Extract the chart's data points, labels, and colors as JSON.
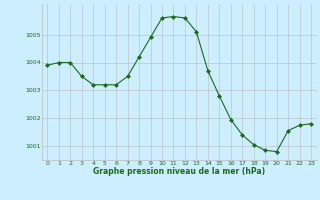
{
  "x": [
    0,
    1,
    2,
    3,
    4,
    5,
    6,
    7,
    8,
    9,
    10,
    11,
    12,
    13,
    14,
    15,
    16,
    17,
    18,
    19,
    20,
    21,
    22,
    23
  ],
  "y": [
    1003.9,
    1004.0,
    1004.0,
    1003.5,
    1003.2,
    1003.2,
    1003.2,
    1003.5,
    1004.2,
    1004.9,
    1005.6,
    1005.65,
    1005.6,
    1005.1,
    1003.7,
    1002.8,
    1001.95,
    1001.4,
    1001.05,
    1000.85,
    1000.8,
    1001.55,
    1001.75,
    1001.8
  ],
  "line_color": "#1a6b1a",
  "marker": "D",
  "marker_size": 2.0,
  "bg_color": "#cceeff",
  "grid_color": "#bbbbbb",
  "xlabel": "Graphe pression niveau de la mer (hPa)",
  "xlabel_color": "#1a6b1a",
  "tick_color": "#1a6b1a",
  "ylim": [
    1000.5,
    1006.1
  ],
  "yticks": [
    1001,
    1002,
    1003,
    1004,
    1005
  ],
  "xlim": [
    -0.5,
    23.5
  ],
  "xticks": [
    0,
    1,
    2,
    3,
    4,
    5,
    6,
    7,
    8,
    9,
    10,
    11,
    12,
    13,
    14,
    15,
    16,
    17,
    18,
    19,
    20,
    21,
    22,
    23
  ]
}
